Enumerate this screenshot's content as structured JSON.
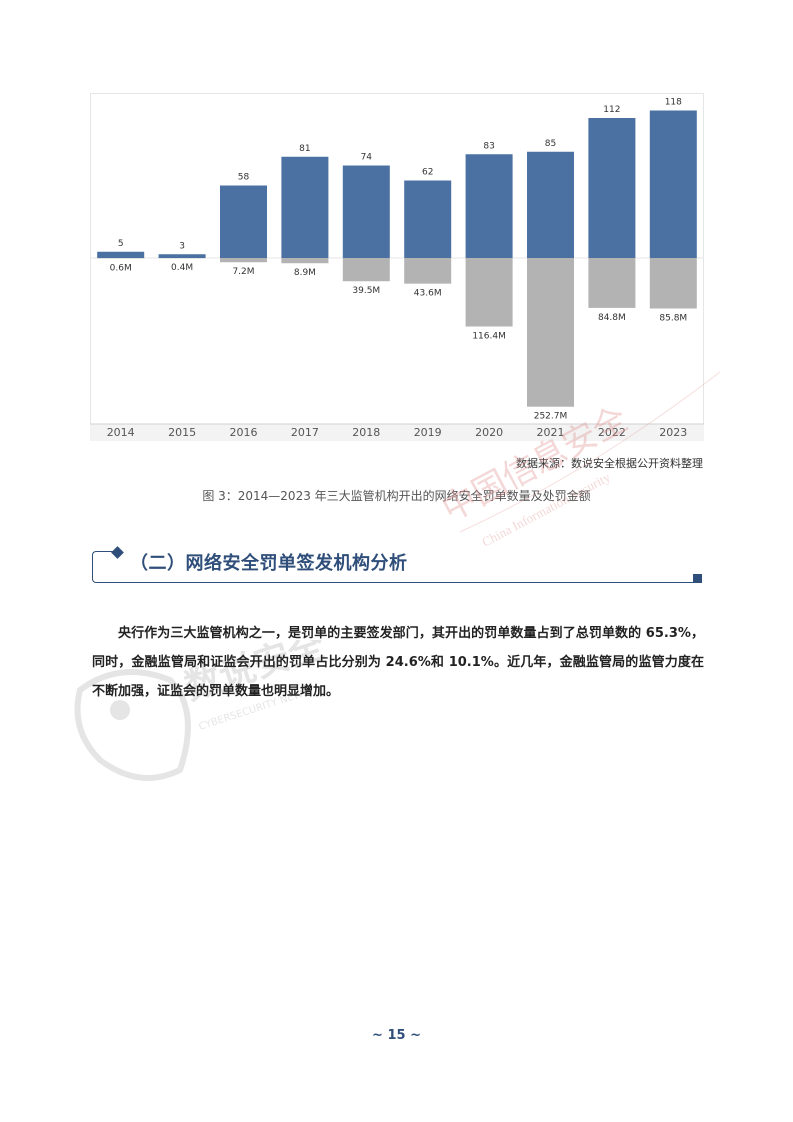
{
  "chart_data": {
    "type": "bar",
    "categories": [
      "2014",
      "2015",
      "2016",
      "2017",
      "2018",
      "2019",
      "2020",
      "2021",
      "2022",
      "2023"
    ],
    "series": [
      {
        "values": [
          5,
          3,
          58,
          81,
          74,
          62,
          83,
          85,
          112,
          118
        ],
        "labels": [
          "5",
          "3",
          "58",
          "81",
          "74",
          "62",
          "83",
          "85",
          "112",
          "118"
        ],
        "color": "#4a71a2"
      },
      {
        "values": [
          0.6,
          0.4,
          7.2,
          8.9,
          39.5,
          43.6,
          116.4,
          252.7,
          84.8,
          85.8
        ],
        "labels": [
          "0.6M",
          "0.4M",
          "7.2M",
          "8.9M",
          "39.5M",
          "43.6M",
          "116.4M",
          "252.7M",
          "84.8M",
          "85.8M"
        ],
        "color": "#b3b3b3"
      }
    ],
    "title": "",
    "xlabel": "",
    "ylabel": "",
    "grid": false
  },
  "chart": {
    "source": "数据来源：数说安全根据公开资料整理",
    "caption": "图 3：2014—2023 年三大监管机构开出的网络安全罚单数量及处罚金额"
  },
  "section": {
    "heading": "（二）网络安全罚单签发机构分析",
    "paragraph": "央行作为三大监管机构之一，是罚单的主要签发部门，其开出的罚单数量占到了总罚单数的 65.3%，同时，金融监管局和证监会开出的罚单占比分别为 24.6%和 10.1%。近几年，金融监管局的监管力度在不断加强，证监会的罚单数量也明显增加。"
  },
  "page": {
    "number": "~ 15 ~"
  },
  "watermark": {
    "stamp_cn": "中国信息安全",
    "stamp_en": "China Information Security",
    "owl_text": "数说安全",
    "owl_en": "CYBERSECURITY NEWS"
  },
  "colors": {
    "accent": "#2f4f7a",
    "bar_count": "#4a71a2",
    "bar_amount": "#b3b3b3",
    "stamp": "#e8a0a0"
  }
}
